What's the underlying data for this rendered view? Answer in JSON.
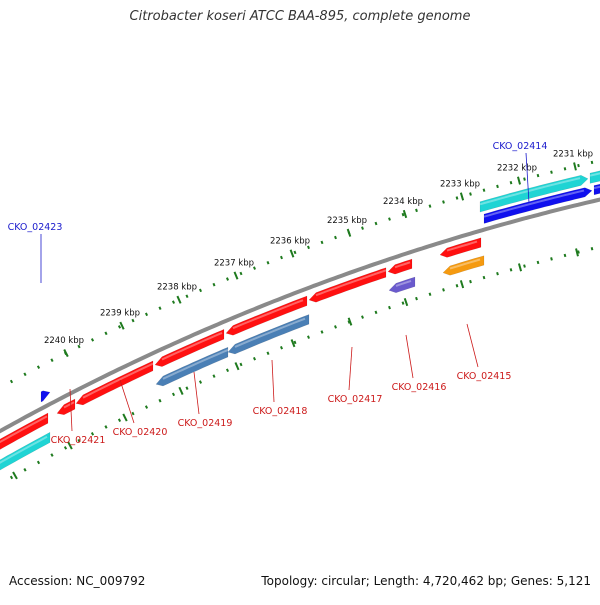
{
  "title": "Citrobacter koseri ATCC BAA-895, complete genome",
  "footer": {
    "accession": "Accession: NC_009792",
    "summary": "Topology: circular; Length: 4,720,462 bp; Genes: 5,121"
  },
  "colors": {
    "backbone": "#8a8a8a",
    "ruler": "#1e7a1e",
    "forward_label": "#1a1acc",
    "reverse_label": "#cc1a1a",
    "red_gene": "#ff1010",
    "cyan_gene": "#1fd4d4",
    "blue_gene": "#1010ee",
    "steel_gene": "#4a7fb5",
    "purple_gene": "#6a5acd",
    "orange_gene": "#f59a10"
  },
  "ruler_outer_labels": [
    "2240 kbp",
    "2239 kbp",
    "2238 kbp",
    "2237 kbp",
    "2236 kbp",
    "2235 kbp",
    "2234 kbp",
    "2233 kbp",
    "2232 kbp",
    "2231 kbp"
  ],
  "forward_labels": [
    "CKO_02423",
    "CKO_02414"
  ],
  "reverse_labels": [
    "CKO_02421",
    "CKO_02420",
    "CKO_02419",
    "CKO_02418",
    "CKO_02417",
    "CKO_02416",
    "CKO_02415"
  ]
}
